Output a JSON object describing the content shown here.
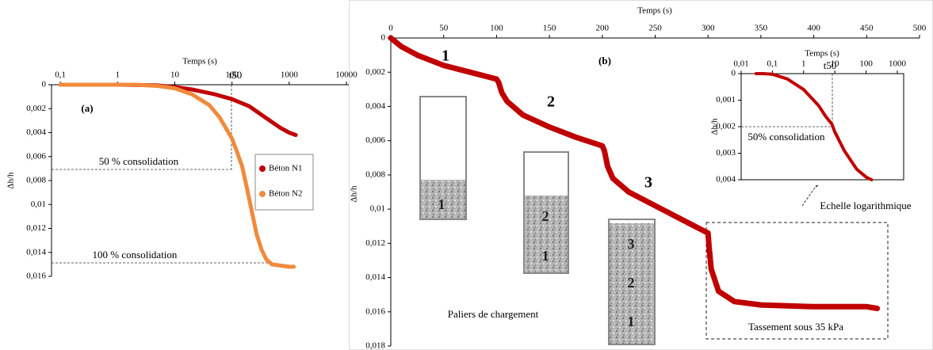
{
  "chart_data": [
    {
      "type": "line",
      "x_label": "Temps (s)",
      "y_label": "Δh/h",
      "log_x": true,
      "y_reversed": true,
      "legend": "center right",
      "xlim": [
        0.07,
        11000
      ],
      "ylim": [
        0,
        0.016
      ],
      "xticks": [
        {
          "value": 0.1,
          "label": "0,1"
        },
        1,
        10,
        100,
        1000,
        10000
      ],
      "yticks": [
        0,
        {
          "value": 0.002,
          "label": "0,002"
        },
        {
          "value": 0.004,
          "label": "0,004"
        },
        {
          "value": 0.006,
          "label": "0,006"
        },
        {
          "value": 0.008,
          "label": "0,008"
        },
        {
          "value": 0.01,
          "label": "0,01"
        },
        {
          "value": 0.012,
          "label": "0,012"
        },
        {
          "value": 0.014,
          "label": "0,014"
        },
        {
          "value": 0.016,
          "label": "0,016"
        }
      ],
      "series": [
        {
          "name": "Béton N1",
          "color": "#c00000",
          "x": [
            0.1,
            1,
            5,
            10,
            20,
            50,
            100,
            200,
            400,
            700,
            1000,
            1300
          ],
          "values": [
            0,
            0,
            5e-05,
            0.0002,
            0.0004,
            0.0008,
            0.0012,
            0.0018,
            0.0028,
            0.0036,
            0.004,
            0.0042
          ]
        },
        {
          "name": "Béton N2",
          "color": "#f08a3c",
          "x": [
            0.1,
            0.2,
            0.5,
            1,
            2,
            5,
            10,
            20,
            40,
            60,
            80,
            100,
            120,
            150,
            180,
            220,
            270,
            330,
            400,
            500,
            700,
            1000,
            1200
          ],
          "values": [
            0,
            0,
            0,
            0,
            0,
            0.0001,
            0.0003,
            0.0008,
            0.0017,
            0.0027,
            0.0037,
            0.0045,
            0.0055,
            0.0068,
            0.0085,
            0.0105,
            0.0125,
            0.0138,
            0.0146,
            0.015,
            0.0151,
            0.0152,
            0.0152
          ]
        }
      ],
      "annotations": [
        "(a)",
        "50 % consolidation",
        "100 % consolidation",
        "t50"
      ]
    },
    {
      "type": "line",
      "x_label": "Temps (s)",
      "y_label": "Δh/h",
      "log_x": false,
      "y_reversed": true,
      "color": "#c00000",
      "xlim": [
        0,
        500
      ],
      "ylim": [
        0,
        0.018
      ],
      "xticks": [
        0,
        50,
        100,
        150,
        200,
        250,
        300,
        350,
        400,
        450,
        500
      ],
      "yticks": [
        0,
        {
          "value": 0.002,
          "label": "0,002"
        },
        {
          "value": 0.004,
          "label": "0,004"
        },
        {
          "value": 0.006,
          "label": "0,006"
        },
        {
          "value": 0.008,
          "label": "0,008"
        },
        {
          "value": 0.01,
          "label": "0,01"
        },
        {
          "value": 0.012,
          "label": "0,012"
        },
        {
          "value": 0.014,
          "label": "0,014"
        },
        {
          "value": 0.016,
          "label": "0,016"
        },
        {
          "value": 0.018,
          "label": "0,018"
        }
      ],
      "x": [
        0,
        10,
        25,
        50,
        75,
        100,
        102,
        105,
        110,
        125,
        150,
        175,
        200,
        202,
        205,
        210,
        225,
        250,
        275,
        300,
        301,
        303,
        310,
        325,
        350,
        400,
        450,
        460
      ],
      "values": [
        0,
        0.0005,
        0.001,
        0.0016,
        0.002,
        0.0024,
        0.0026,
        0.0032,
        0.0037,
        0.0045,
        0.0052,
        0.0058,
        0.0063,
        0.0066,
        0.0075,
        0.0082,
        0.009,
        0.0098,
        0.0106,
        0.0114,
        0.0122,
        0.0135,
        0.0148,
        0.0154,
        0.0156,
        0.0157,
        0.0157,
        0.0158
      ],
      "annotations": [
        "(b)",
        "1",
        "2",
        "3",
        "Paliers de chargement",
        "Tassement sous 35 kPa",
        "Echelle logarithmique",
        "1",
        "2",
        "1",
        "3",
        "2",
        "1"
      ]
    },
    {
      "type": "line",
      "x_label": "Temps (s)",
      "y_label": "Δh/h",
      "log_x": true,
      "y_reversed": true,
      "color": "#c00000",
      "xlim": [
        0.01,
        1600
      ],
      "ylim": [
        0,
        0.004
      ],
      "xticks": [
        {
          "value": 0.01,
          "label": "0,01"
        },
        {
          "value": 0.1,
          "label": "0,1"
        },
        1,
        10,
        100,
        1000
      ],
      "yticks": [
        0,
        {
          "value": 0.001,
          "label": "0,001"
        },
        {
          "value": 0.002,
          "label": "0,002"
        },
        {
          "value": 0.003,
          "label": "0,003"
        },
        {
          "value": 0.004,
          "label": "0,004"
        }
      ],
      "x": [
        0.03,
        0.05,
        0.1,
        0.3,
        1,
        3,
        5,
        8,
        10,
        20,
        50,
        100,
        150
      ],
      "values": [
        0,
        0,
        2e-05,
        0.0002,
        0.0006,
        0.0012,
        0.0016,
        0.0019,
        0.0022,
        0.0029,
        0.0036,
        0.0039,
        0.004
      ],
      "annotations": [
        "50% consolidation",
        "t50"
      ]
    }
  ]
}
